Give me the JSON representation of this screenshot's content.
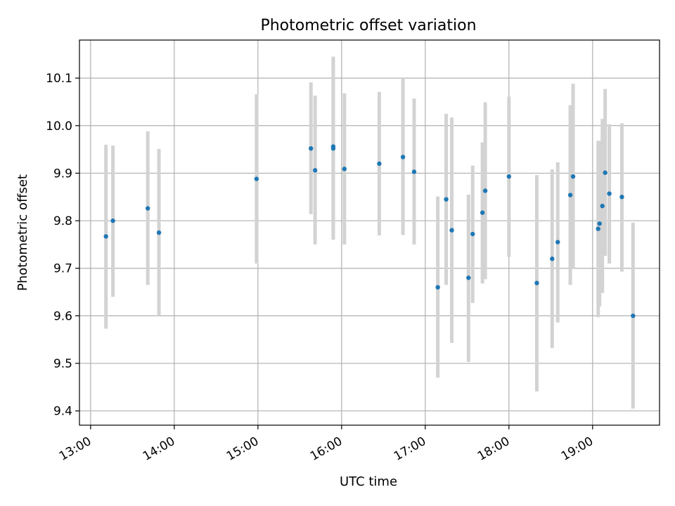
{
  "chart_data": {
    "type": "scatter",
    "title": "Photometric offset variation",
    "xlabel": "UTC time",
    "ylabel": "Photometric offset",
    "grid": true,
    "xlim": [
      "12:52",
      "19:48"
    ],
    "ylim": [
      9.37,
      10.18
    ],
    "xticks": [
      "13:00",
      "14:00",
      "15:00",
      "16:00",
      "17:00",
      "18:00",
      "19:00"
    ],
    "yticks": [
      "9.4",
      "9.5",
      "9.6",
      "9.7",
      "9.8",
      "9.9",
      "10.0",
      "10.1"
    ],
    "marker_color": "#1f77b4",
    "errorbar_color": "#d3d3d3",
    "points": [
      {
        "x": "13:11",
        "y": 9.767,
        "ymin": 9.573,
        "ymax": 9.96
      },
      {
        "x": "13:16",
        "y": 9.8,
        "ymin": 9.64,
        "ymax": 9.958
      },
      {
        "x": "13:41",
        "y": 9.826,
        "ymin": 9.665,
        "ymax": 9.988
      },
      {
        "x": "13:49",
        "y": 9.775,
        "ymin": 9.6,
        "ymax": 9.951
      },
      {
        "x": "14:59",
        "y": 9.888,
        "ymin": 9.71,
        "ymax": 10.066
      },
      {
        "x": "15:38",
        "y": 9.952,
        "ymin": 9.814,
        "ymax": 10.091
      },
      {
        "x": "15:41",
        "y": 9.906,
        "ymin": 9.75,
        "ymax": 10.063
      },
      {
        "x": "15:54",
        "y": 9.956,
        "ymin": 9.775,
        "ymax": 10.145
      },
      {
        "x": "15:54",
        "y": 9.952,
        "ymin": 9.76,
        "ymax": 10.14
      },
      {
        "x": "16:02",
        "y": 9.909,
        "ymin": 9.75,
        "ymax": 10.068
      },
      {
        "x": "16:27",
        "y": 9.92,
        "ymin": 9.769,
        "ymax": 10.071
      },
      {
        "x": "16:44",
        "y": 9.934,
        "ymin": 9.77,
        "ymax": 10.1
      },
      {
        "x": "16:52",
        "y": 9.903,
        "ymin": 9.75,
        "ymax": 10.057
      },
      {
        "x": "17:09",
        "y": 9.66,
        "ymin": 9.47,
        "ymax": 9.851
      },
      {
        "x": "17:15",
        "y": 9.845,
        "ymin": 9.665,
        "ymax": 10.025
      },
      {
        "x": "17:19",
        "y": 9.78,
        "ymin": 9.543,
        "ymax": 10.017
      },
      {
        "x": "17:31",
        "y": 9.68,
        "ymin": 9.503,
        "ymax": 9.855
      },
      {
        "x": "17:34",
        "y": 9.772,
        "ymin": 9.627,
        "ymax": 9.916
      },
      {
        "x": "17:41",
        "y": 9.817,
        "ymin": 9.668,
        "ymax": 9.965
      },
      {
        "x": "17:43",
        "y": 9.863,
        "ymin": 9.677,
        "ymax": 10.049
      },
      {
        "x": "18:00",
        "y": 9.893,
        "ymin": 9.724,
        "ymax": 10.061
      },
      {
        "x": "18:20",
        "y": 9.669,
        "ymin": 9.441,
        "ymax": 9.896
      },
      {
        "x": "18:31",
        "y": 9.72,
        "ymin": 9.532,
        "ymax": 9.908
      },
      {
        "x": "18:35",
        "y": 9.755,
        "ymin": 9.586,
        "ymax": 9.923
      },
      {
        "x": "18:44",
        "y": 9.854,
        "ymin": 9.665,
        "ymax": 10.043
      },
      {
        "x": "18:46",
        "y": 9.893,
        "ymin": 9.7,
        "ymax": 10.088
      },
      {
        "x": "19:04",
        "y": 9.783,
        "ymin": 9.597,
        "ymax": 9.968
      },
      {
        "x": "19:05",
        "y": 9.794,
        "ymin": 9.62,
        "ymax": 9.968
      },
      {
        "x": "19:07",
        "y": 9.831,
        "ymin": 9.648,
        "ymax": 10.014
      },
      {
        "x": "19:09",
        "y": 9.901,
        "ymin": 9.726,
        "ymax": 10.077
      },
      {
        "x": "19:12",
        "y": 9.857,
        "ymin": 9.71,
        "ymax": 10.003
      },
      {
        "x": "19:21",
        "y": 9.85,
        "ymin": 9.693,
        "ymax": 10.005
      },
      {
        "x": "19:29",
        "y": 9.6,
        "ymin": 9.405,
        "ymax": 9.796
      }
    ]
  }
}
